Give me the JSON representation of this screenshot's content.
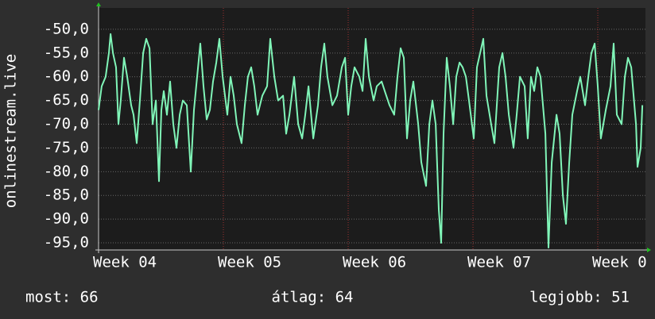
{
  "chart_data": {
    "type": "line",
    "y_label": "onlinestream.live",
    "stats": [
      "most: 66",
      "átlag: 64",
      "legjobb: 51"
    ],
    "xlim": [
      4,
      8.382
    ],
    "xticks": [
      {
        "value": 4,
        "label": "Week 04"
      },
      {
        "value": 5,
        "label": "Week 05"
      },
      {
        "value": 6,
        "label": "Week 06"
      },
      {
        "value": 7,
        "label": "Week 07"
      },
      {
        "value": 8,
        "label": "Week 0"
      }
    ],
    "ylim": [
      -96.5,
      -45.5
    ],
    "yticks": [
      {
        "value": -50,
        "label": "-50,0"
      },
      {
        "value": -55,
        "label": "-55,0"
      },
      {
        "value": -60,
        "label": "-60,0"
      },
      {
        "value": -65,
        "label": "-65,0"
      },
      {
        "value": -70,
        "label": "-70,0"
      },
      {
        "value": -75,
        "label": "-75,0"
      },
      {
        "value": -80,
        "label": "-80,0"
      },
      {
        "value": -85,
        "label": "-85,0"
      },
      {
        "value": -90,
        "label": "-90,0"
      },
      {
        "value": -95,
        "label": "-95,0"
      }
    ],
    "grid": true,
    "series": [
      {
        "color": "#80f5b8",
        "x": [
          4.0,
          4.025,
          4.057,
          4.083,
          4.096,
          4.115,
          4.14,
          4.159,
          4.178,
          4.204,
          4.229,
          4.261,
          4.28,
          4.306,
          4.331,
          4.357,
          4.382,
          4.408,
          4.433,
          4.459,
          4.484,
          4.503,
          4.522,
          4.548,
          4.573,
          4.599,
          4.624,
          4.65,
          4.675,
          4.707,
          4.739,
          4.764,
          4.79,
          4.815,
          4.841,
          4.866,
          4.892,
          4.917,
          4.943,
          4.968,
          4.994,
          5.032,
          5.057,
          5.083,
          5.108,
          5.146,
          5.172,
          5.197,
          5.223,
          5.248,
          5.274,
          5.312,
          5.35,
          5.376,
          5.408,
          5.439,
          5.478,
          5.503,
          5.529,
          5.567,
          5.599,
          5.631,
          5.656,
          5.682,
          5.72,
          5.758,
          5.783,
          5.809,
          5.834,
          5.873,
          5.911,
          5.949,
          5.975,
          6.0,
          6.025,
          6.051,
          6.089,
          6.115,
          6.14,
          6.166,
          6.204,
          6.229,
          6.268,
          6.293,
          6.331,
          6.369,
          6.395,
          6.42,
          6.446,
          6.471,
          6.497,
          6.522,
          6.561,
          6.586,
          6.624,
          6.65,
          6.675,
          6.701,
          6.726,
          6.745,
          6.764,
          6.79,
          6.815,
          6.841,
          6.866,
          6.892,
          6.917,
          6.943,
          6.968,
          7.006,
          7.032,
          7.057,
          7.083,
          7.108,
          7.146,
          7.172,
          7.21,
          7.236,
          7.261,
          7.287,
          7.325,
          7.35,
          7.376,
          7.414,
          7.439,
          7.465,
          7.49,
          7.516,
          7.541,
          7.58,
          7.605,
          7.631,
          7.669,
          7.694,
          7.72,
          7.745,
          7.771,
          7.796,
          7.834,
          7.86,
          7.898,
          7.924,
          7.949,
          7.975,
          8.0,
          8.025,
          8.064,
          8.102,
          8.127,
          8.153,
          8.191,
          8.217,
          8.242,
          8.268,
          8.306,
          8.318,
          8.344,
          8.357
        ],
        "values": [
          -67,
          -62,
          -60,
          -55,
          -51,
          -55,
          -58,
          -70,
          -65,
          -56,
          -60,
          -66,
          -68,
          -74,
          -65,
          -55,
          -52,
          -54,
          -70,
          -65,
          -82,
          -67,
          -63,
          -68,
          -61,
          -70,
          -75,
          -68,
          -65,
          -66,
          -80,
          -67,
          -60,
          -53,
          -62,
          -69,
          -67,
          -61,
          -57,
          -52,
          -60,
          -68,
          -60,
          -64,
          -70,
          -74,
          -66,
          -60,
          -58,
          -62,
          -68,
          -64,
          -62,
          -52,
          -60,
          -65,
          -64,
          -72,
          -68,
          -60,
          -70,
          -73,
          -68,
          -62,
          -73,
          -66,
          -58,
          -53,
          -60,
          -66,
          -64,
          -58,
          -56,
          -68,
          -62,
          -58,
          -60,
          -63,
          -52,
          -60,
          -65,
          -62,
          -61,
          -63,
          -66,
          -68,
          -60,
          -54,
          -56,
          -73,
          -65,
          -61,
          -70,
          -78,
          -83,
          -70,
          -65,
          -70,
          -88,
          -95,
          -72,
          -56,
          -62,
          -70,
          -60,
          -57,
          -58,
          -60,
          -65,
          -73,
          -58,
          -55,
          -52,
          -64,
          -70,
          -74,
          -58,
          -55,
          -60,
          -68,
          -75,
          -68,
          -60,
          -62,
          -73,
          -60,
          -63,
          -58,
          -60,
          -72,
          -96,
          -78,
          -68,
          -72,
          -85,
          -91,
          -78,
          -68,
          -63,
          -60,
          -66,
          -60,
          -55,
          -53,
          -62,
          -73,
          -67,
          -62,
          -53,
          -68,
          -70,
          -60,
          -56,
          -58,
          -70,
          -79,
          -75,
          -66
        ]
      }
    ]
  }
}
